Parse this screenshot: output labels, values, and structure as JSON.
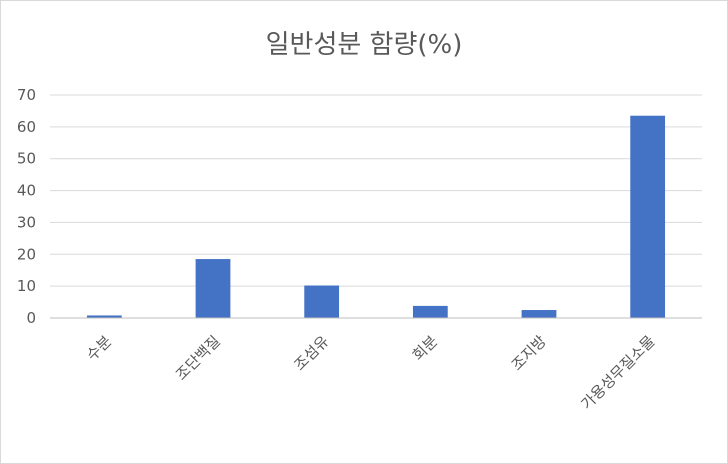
{
  "chart_data": {
    "type": "bar",
    "title": "일반성분 함량(%)",
    "xlabel": "",
    "ylabel": "",
    "categories": [
      "수분",
      "조단백질",
      "조섬유",
      "회분",
      "조지방",
      "가용성무질소물"
    ],
    "values": [
      0.8,
      18.5,
      10.2,
      3.8,
      2.5,
      63.5
    ],
    "yticks": [
      0,
      10,
      20,
      30,
      40,
      50,
      60,
      70
    ],
    "ylim": [
      0,
      70
    ],
    "grid": true,
    "legend": "none",
    "bar_color": "#4472c4"
  }
}
